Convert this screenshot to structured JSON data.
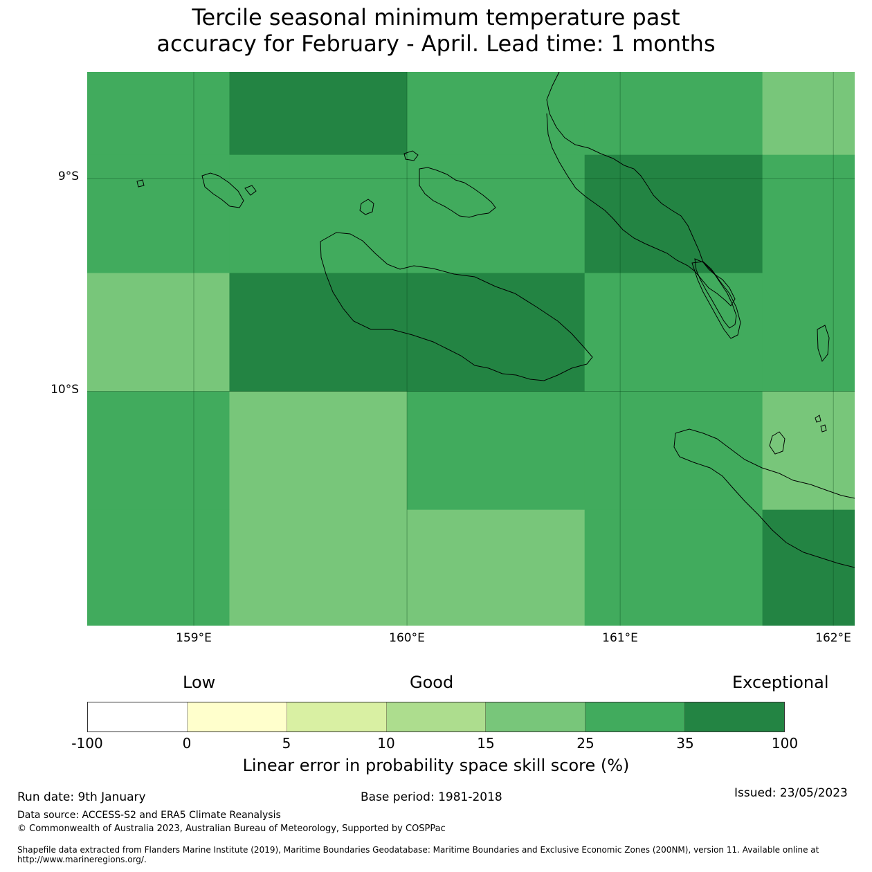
{
  "title_line1": "Tercile seasonal minimum temperature past",
  "title_line2": "accuracy for February - April. Lead time: 1 months",
  "map": {
    "lat_ticks": [
      "9°S",
      "10°S"
    ],
    "lon_ticks": [
      "159°E",
      "160°E",
      "161°E",
      "162°E"
    ],
    "extent": {
      "lon": [
        158.5,
        162.1
      ],
      "lat": [
        -8.5,
        -11.1
      ]
    },
    "grid": {
      "lon_edges": [
        158.5,
        159.167,
        160.0,
        160.833,
        161.667,
        162.1
      ],
      "lat_edges": [
        -8.5,
        -8.889,
        -9.444,
        -10.0,
        -10.556,
        -11.1
      ],
      "values": [
        [
          "g5",
          "g6",
          "g5",
          "g5",
          "g4"
        ],
        [
          "g5",
          "g5",
          "g5",
          "g6",
          "g5"
        ],
        [
          "g4",
          "g6",
          "g6",
          "g5",
          "g5"
        ],
        [
          "g5",
          "g4",
          "g5",
          "g5",
          "g4"
        ],
        [
          "g5",
          "g4",
          "g4",
          "g5",
          "g6"
        ]
      ],
      "legend_colors": {
        "g4": "#78c67a",
        "g5": "#41ab5d",
        "g6": "#238443"
      }
    }
  },
  "legend": {
    "categories": {
      "low": "Low",
      "good": "Good",
      "exceptional": "Exceptional"
    },
    "colors": [
      "#ffffff",
      "#ffffcc",
      "#d9f0a3",
      "#addd8e",
      "#78c67a",
      "#41ab5d",
      "#238443"
    ],
    "ticks": [
      "-100",
      "0",
      "5",
      "10",
      "15",
      "25",
      "35",
      "100"
    ],
    "label": "Linear error in probability space skill score (%)"
  },
  "footer": {
    "run_date": "Run date: 9th January",
    "base_period": "Base period: 1981-2018",
    "issued": "Issued: 23/05/2023",
    "data_source": "Data source: ACCESS-S2 and ERA5 Climate Reanalysis",
    "copyright": "© Commonwealth of Australia 2023, Australian Bureau of Meteorology, Supported by COSPPac",
    "shapefile": "Shapefile data extracted from Flanders Marine Institute (2019), Maritime Boundaries Geodatabase: Maritime Boundaries and Exclusive Economic Zones (200NM), version 11. Available online at http://www.marineregions.org/."
  }
}
